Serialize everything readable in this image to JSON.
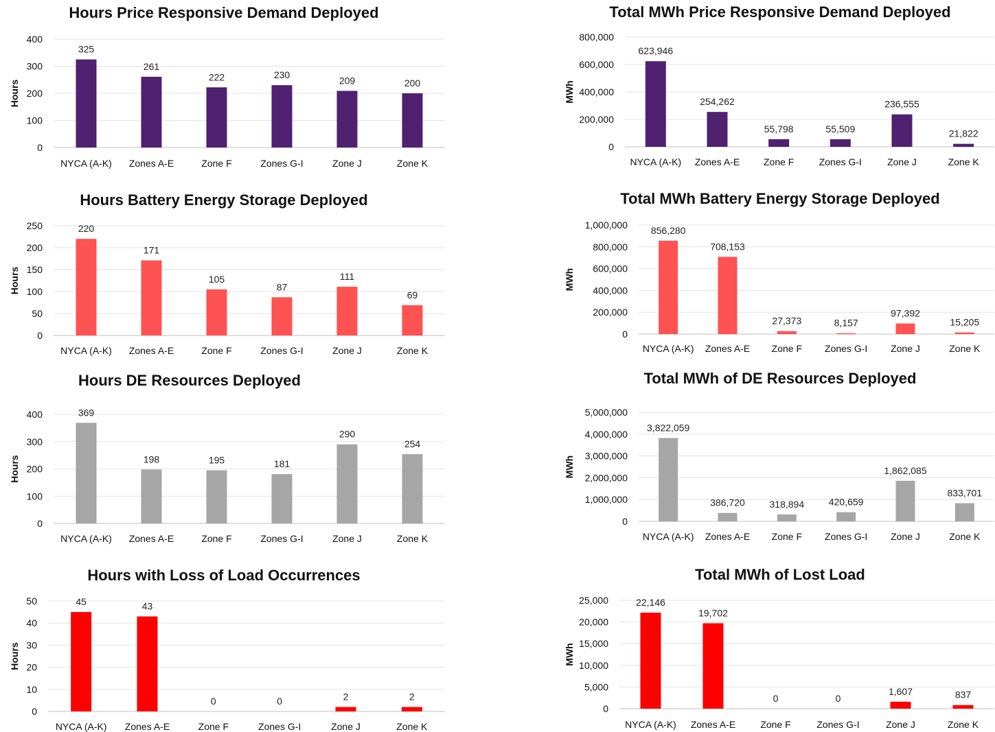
{
  "chart_data": [
    {
      "type": "bar",
      "title": "Hours Price Responsive Demand Deployed",
      "ylabel": "Hours",
      "categories": [
        "NYCA (A-K)",
        "Zones A-E",
        "Zone F",
        "Zones G-I",
        "Zone J",
        "Zone K"
      ],
      "values": [
        325,
        261,
        222,
        230,
        209,
        200
      ],
      "value_labels": [
        "325",
        "261",
        "222",
        "230",
        "209",
        "200"
      ],
      "ylim": [
        0,
        400
      ],
      "yticks": [
        "0",
        "100",
        "200",
        "300",
        "400"
      ],
      "grid": true,
      "color": "#4f2170"
    },
    {
      "type": "bar",
      "title": "Total MWh Price Responsive Demand Deployed",
      "ylabel": "MWh",
      "categories": [
        "NYCA (A-K)",
        "Zones A-E",
        "Zone F",
        "Zones G-I",
        "Zone J",
        "Zone K"
      ],
      "values": [
        623946,
        254262,
        55798,
        55509,
        236555,
        21822
      ],
      "value_labels": [
        "623,946",
        "254,262",
        "55,798",
        "55,509",
        "236,555",
        "21,822"
      ],
      "ylim": [
        0,
        800000
      ],
      "yticks": [
        "0",
        "200,000",
        "400,000",
        "600,000",
        "800,000"
      ],
      "grid": true,
      "color": "#4f2170"
    },
    {
      "type": "bar",
      "title": "Hours Battery Energy Storage Deployed",
      "ylabel": "Hours",
      "categories": [
        "NYCA (A-K)",
        "Zones A-E",
        "Zone F",
        "Zones G-I",
        "Zone J",
        "Zone K"
      ],
      "values": [
        220,
        171,
        105,
        87,
        111,
        69
      ],
      "value_labels": [
        "220",
        "171",
        "105",
        "87",
        "111",
        "69"
      ],
      "ylim": [
        0,
        250
      ],
      "yticks": [
        "0",
        "50",
        "100",
        "150",
        "200",
        "250"
      ],
      "grid": true,
      "color": "#ff5252"
    },
    {
      "type": "bar",
      "title": "Total MWh Battery Energy Storage Deployed",
      "ylabel": "MWh",
      "categories": [
        "NYCA (A-K)",
        "Zones A-E",
        "Zone F",
        "Zones G-I",
        "Zone J",
        "Zone K"
      ],
      "values": [
        856280,
        708153,
        27373,
        8157,
        97392,
        15205
      ],
      "value_labels": [
        "856,280",
        "708,153",
        "27,373",
        "8,157",
        "97,392",
        "15,205"
      ],
      "ylim": [
        0,
        1000000
      ],
      "yticks": [
        "0",
        "200,000",
        "400,000",
        "600,000",
        "800,000",
        "1,000,000"
      ],
      "grid": true,
      "color": "#ff5252"
    },
    {
      "type": "bar",
      "title": "Hours DE Resources Deployed",
      "ylabel": "Hours",
      "categories": [
        "NYCA (A-K)",
        "Zones A-E",
        "Zone F",
        "Zones G-I",
        "Zone J",
        "Zone K"
      ],
      "values": [
        369,
        198,
        195,
        181,
        290,
        254
      ],
      "value_labels": [
        "369",
        "198",
        "195",
        "181",
        "290",
        "254"
      ],
      "ylim": [
        0,
        400
      ],
      "yticks": [
        "0",
        "100",
        "200",
        "300",
        "400"
      ],
      "grid": true,
      "color": "#a6a6a6"
    },
    {
      "type": "bar",
      "title": "Total MWh of DE Resources Deployed",
      "ylabel": "MWh",
      "categories": [
        "NYCA (A-K)",
        "Zones A-E",
        "Zone F",
        "Zones G-I",
        "Zone J",
        "Zone K"
      ],
      "values": [
        3822059,
        386720,
        318894,
        420659,
        1862085,
        833701
      ],
      "value_labels": [
        "3,822,059",
        "386,720",
        "318,894",
        "420,659",
        "1,862,085",
        "833,701"
      ],
      "ylim": [
        0,
        5000000
      ],
      "yticks": [
        "0",
        "1,000,000",
        "2,000,000",
        "3,000,000",
        "4,000,000",
        "5,000,000"
      ],
      "grid": true,
      "color": "#a6a6a6"
    },
    {
      "type": "bar",
      "title": "Hours with Loss of Load Occurrences",
      "ylabel": "Hours",
      "categories": [
        "NYCA (A-K)",
        "Zones A-E",
        "Zone F",
        "Zones G-I",
        "Zone J",
        "Zone K"
      ],
      "values": [
        45,
        43,
        0,
        0,
        2,
        2
      ],
      "value_labels": [
        "45",
        "43",
        "0",
        "0",
        "2",
        "2"
      ],
      "ylim": [
        0,
        50
      ],
      "yticks": [
        "0",
        "10",
        "20",
        "30",
        "40",
        "50"
      ],
      "grid": true,
      "color": "#ff0000"
    },
    {
      "type": "bar",
      "title": "Total MWh of Lost Load",
      "ylabel": "MWh",
      "categories": [
        "NYCA (A-K)",
        "Zones A-E",
        "Zone F",
        "Zones G-I",
        "Zone J",
        "Zone K"
      ],
      "values": [
        22146,
        19702,
        0,
        0,
        1607,
        837
      ],
      "value_labels": [
        "22,146",
        "19,702",
        "0",
        "0",
        "1,607",
        "837"
      ],
      "ylim": [
        0,
        25000
      ],
      "yticks": [
        "0",
        "5,000",
        "10,000",
        "15,000",
        "20,000",
        "25,000"
      ],
      "grid": true,
      "color": "#ff0000"
    }
  ]
}
